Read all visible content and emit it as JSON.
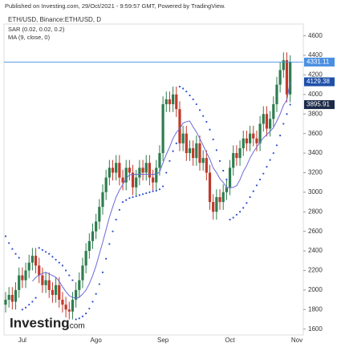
{
  "chart_data": {
    "type": "candlestick",
    "title": "Published on Investing.com, 29/Oct/2021 - 9:59:57 GMT, Powered by TradingView.",
    "subtitle": "ETH/USD, Binance:ETH/USD, D",
    "watermark": [
      "Investing",
      ".com"
    ],
    "categories": [
      null,
      null,
      null,
      null,
      null,
      "Jul",
      null,
      null,
      null,
      null,
      null,
      null,
      null,
      null,
      null,
      null,
      null,
      null,
      null,
      null,
      null,
      null,
      null,
      null,
      null,
      null,
      null,
      "Ago",
      null,
      null,
      null,
      null,
      null,
      null,
      null,
      null,
      null,
      null,
      null,
      null,
      null,
      null,
      null,
      null,
      null,
      null,
      null,
      "Sep",
      null,
      null,
      null,
      null,
      null,
      null,
      null,
      null,
      null,
      null,
      null,
      null,
      null,
      null,
      null,
      null,
      null,
      null,
      null,
      "Oct",
      null,
      null,
      null,
      null,
      null,
      null,
      null,
      null,
      null,
      null,
      null,
      null,
      null,
      null,
      null,
      null,
      null,
      null,
      null,
      "Nov"
    ],
    "open": [
      1850,
      1900,
      1950,
      1880,
      2000,
      2150,
      2100,
      2200,
      2280,
      2350,
      2250,
      2150,
      2050,
      2100,
      2000,
      1950,
      2050,
      1900,
      1850,
      1800,
      1780,
      1900,
      2000,
      2100,
      2250,
      2400,
      2500,
      2600,
      2700,
      2850,
      3000,
      3150,
      3250,
      3200,
      3300,
      3150,
      3100,
      3250,
      3200,
      3050,
      3150,
      3250,
      3200,
      3300,
      3150,
      3100,
      3250,
      3400,
      3900,
      3950,
      3900,
      4000,
      3850,
      3500,
      3600,
      3400,
      3450,
      3350,
      3500,
      3300,
      3350,
      3200,
      2900,
      2800,
      2950,
      2900,
      3000,
      3050,
      3250,
      3400,
      3350,
      3450,
      3550,
      3500,
      3600,
      3550,
      3500,
      3700,
      3800,
      3650,
      3750,
      3900,
      4100,
      4250,
      4350,
      4000,
      null,
      null
    ],
    "high": [
      1980,
      2030,
      2030,
      2080,
      2230,
      2230,
      2280,
      2360,
      2430,
      2430,
      2330,
      2230,
      2180,
      2180,
      2080,
      2130,
      2130,
      1980,
      1930,
      1880,
      1980,
      2080,
      2180,
      2330,
      2480,
      2580,
      2680,
      2780,
      2930,
      3080,
      3230,
      3330,
      3330,
      3380,
      3380,
      3230,
      3330,
      3330,
      3280,
      3230,
      3330,
      3330,
      3380,
      3380,
      3230,
      3330,
      3480,
      3980,
      4030,
      4030,
      4080,
      4080,
      3930,
      3680,
      3680,
      3530,
      3530,
      3580,
      3580,
      3430,
      3430,
      3280,
      2980,
      3030,
      3030,
      3080,
      3130,
      3330,
      3480,
      3480,
      3530,
      3630,
      3630,
      3680,
      3680,
      3630,
      3780,
      3880,
      3880,
      3830,
      3980,
      4180,
      4330,
      4430,
      4430,
      4400,
      null,
      null
    ],
    "low": [
      1770,
      1820,
      1800,
      1800,
      1920,
      2020,
      2020,
      2120,
      2200,
      2170,
      2070,
      1970,
      1970,
      1920,
      1870,
      1870,
      1820,
      1770,
      1720,
      1700,
      1700,
      1820,
      1920,
      2020,
      2170,
      2320,
      2420,
      2520,
      2620,
      2770,
      2920,
      3070,
      3120,
      3120,
      3070,
      3020,
      3020,
      3120,
      2970,
      2970,
      3070,
      3120,
      3120,
      3070,
      3020,
      3020,
      3170,
      3320,
      3820,
      3820,
      3820,
      3770,
      3420,
      3420,
      3320,
      3320,
      3270,
      3270,
      3220,
      3220,
      3120,
      2820,
      2720,
      2720,
      2820,
      2820,
      2920,
      2970,
      3170,
      3270,
      3270,
      3370,
      3420,
      3420,
      3470,
      3420,
      3420,
      3620,
      3570,
      3570,
      3670,
      3820,
      4020,
      4170,
      3920,
      3920,
      null,
      null
    ],
    "close": [
      1900,
      1950,
      1880,
      2000,
      2150,
      2100,
      2200,
      2280,
      2350,
      2250,
      2150,
      2050,
      2100,
      2000,
      1950,
      2050,
      1900,
      1850,
      1800,
      1780,
      1900,
      2000,
      2100,
      2250,
      2400,
      2500,
      2600,
      2700,
      2850,
      3000,
      3150,
      3250,
      3200,
      3300,
      3150,
      3100,
      3250,
      3200,
      3050,
      3150,
      3250,
      3200,
      3300,
      3150,
      3100,
      3250,
      3400,
      3900,
      3950,
      3900,
      4000,
      3850,
      3500,
      3600,
      3400,
      3450,
      3350,
      3500,
      3300,
      3350,
      3200,
      2900,
      2800,
      2950,
      2900,
      3000,
      3050,
      3250,
      3400,
      3350,
      3450,
      3550,
      3500,
      3600,
      3550,
      3500,
      3700,
      3800,
      3650,
      3750,
      3900,
      4100,
      4250,
      4350,
      4000,
      4331.11,
      null,
      null
    ],
    "up_color": "#2e7d4f",
    "down_color": "#c0392b",
    "last_color": "#4a90e2",
    "series": [
      {
        "name": "SAR (0.02, 0.02, 0.2)",
        "style": "dots",
        "color": "#2f4fd0",
        "values": [
          2550,
          2480,
          2420,
          2370,
          2330,
          1800,
          1820,
          1850,
          1880,
          1920,
          2430,
          2410,
          2390,
          2370,
          2340,
          2310,
          2280,
          2250,
          2200,
          2150,
          2100,
          1700,
          1710,
          1730,
          1760,
          1810,
          1880,
          1960,
          2060,
          2180,
          2320,
          2470,
          2600,
          2720,
          2820,
          2900,
          2920,
          2940,
          2950,
          2960,
          2970,
          2980,
          2990,
          3000,
          3010,
          3015,
          3030,
          3060,
          3200,
          3320,
          3420,
          3500,
          4080,
          4060,
          4030,
          3990,
          3950,
          3900,
          3840,
          3780,
          3720,
          3640,
          3540,
          3430,
          3320,
          3220,
          3130,
          2720,
          2740,
          2770,
          2800,
          2840,
          2890,
          2950,
          3010,
          3070,
          3130,
          3190,
          3260,
          3330,
          3400,
          3480,
          3580,
          3700,
          3800,
          3895.91,
          null,
          null
        ],
        "tag_color": "#1c2a4a"
      },
      {
        "name": "MA (9, close, 0)",
        "style": "line",
        "color": "#6a6ad8",
        "values": [
          null,
          null,
          null,
          null,
          null,
          null,
          null,
          null,
          2090,
          2129,
          2151,
          2170,
          2181,
          2164,
          2148,
          2131,
          2089,
          2033,
          1983,
          1942,
          1926,
          1914,
          1926,
          1959,
          1998,
          2064,
          2148,
          2248,
          2367,
          2489,
          2617,
          2744,
          2850,
          2950,
          3022,
          3078,
          3139,
          3178,
          3183,
          3183,
          3183,
          3183,
          3183,
          3183,
          3183,
          3183,
          3206,
          3300,
          3389,
          3461,
          3550,
          3611,
          3650,
          3706,
          3722,
          3728,
          3667,
          3617,
          3550,
          3478,
          3406,
          3339,
          3250,
          3200,
          3139,
          3100,
          3050,
          3044,
          3050,
          3067,
          3128,
          3211,
          3272,
          3350,
          3411,
          3461,
          3511,
          3556,
          3589,
          3622,
          3661,
          3728,
          3800,
          3889,
          3944,
          4129.38,
          null,
          null
        ],
        "tag_color": "#1f4fa8"
      }
    ],
    "ylim": [
      1540,
      4720
    ],
    "yticks": [
      1600,
      1800,
      2000,
      2200,
      2400,
      2600,
      2800,
      3000,
      3200,
      3400,
      3600,
      3800,
      4000,
      4200,
      4400,
      4600
    ]
  }
}
